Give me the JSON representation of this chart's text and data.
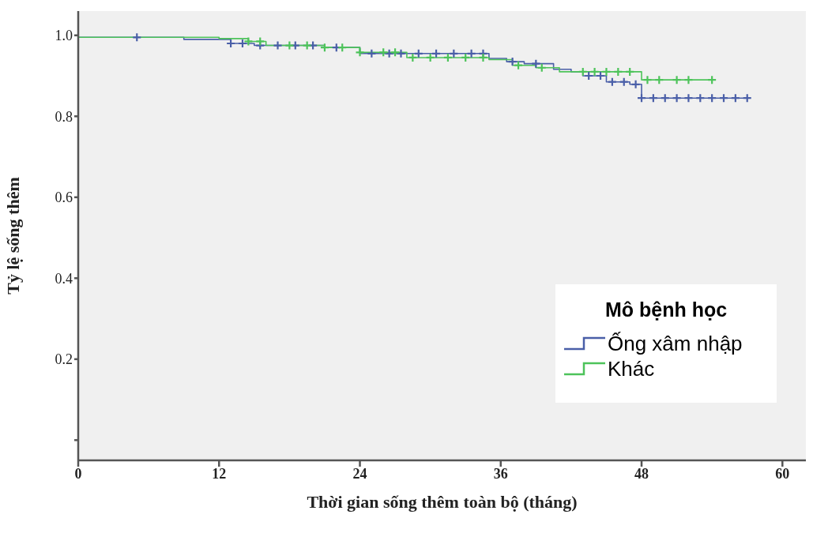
{
  "chart_data": {
    "type": "step",
    "xlabel": "Thời gian sống thêm toàn bộ (tháng)",
    "ylabel": "Tỷ lệ sống thêm",
    "legend_title": "Mô bệnh học",
    "legend": "bottom right",
    "grid": false,
    "xlim": [
      0,
      62
    ],
    "xticks": [
      0,
      12,
      24,
      36,
      48,
      60
    ],
    "ylim": [
      -0.05,
      1.06
    ],
    "yticks": [
      {
        "value": 0,
        "label": null
      },
      0.2,
      0.4,
      0.6,
      {
        "value": 0.8,
        "label": "0.8"
      },
      {
        "value": 1,
        "label": "1.0"
      }
    ],
    "series": [
      {
        "name": "Ống xâm nhập",
        "type": "step",
        "color": "#4a5fa8",
        "marker": "none",
        "x": [
          0,
          9,
          13,
          15,
          21,
          24,
          35,
          36.5,
          38,
          40.5,
          42,
          43,
          45,
          47,
          48,
          57
        ],
        "values": [
          0.995,
          0.99,
          0.98,
          0.975,
          0.97,
          0.955,
          0.943,
          0.935,
          0.93,
          0.916,
          0.91,
          0.9,
          0.885,
          0.879,
          0.845,
          0.845
        ]
      },
      {
        "name": "Khác",
        "type": "step",
        "color": "#4dc35a",
        "marker": "none",
        "x": [
          0,
          12,
          14.5,
          16,
          21,
          24,
          28,
          35,
          37,
          39,
          41,
          48,
          54
        ],
        "values": [
          0.995,
          0.992,
          0.985,
          0.975,
          0.97,
          0.958,
          0.945,
          0.94,
          0.926,
          0.92,
          0.91,
          0.89,
          0.89
        ]
      },
      {
        "type": "scatter",
        "color": "#4a5fa8",
        "marker": "cross",
        "x": [
          5,
          13,
          14,
          15.5,
          17,
          18.5,
          20,
          22,
          25,
          26.5,
          27.5,
          29,
          30.5,
          32,
          33.5,
          34.5,
          37,
          39,
          43.5,
          44.5,
          45.5,
          46.5,
          47.5,
          48,
          49,
          50,
          51,
          52,
          53,
          54,
          55,
          56,
          57
        ],
        "values": [
          0.995,
          0.98,
          0.98,
          0.975,
          0.975,
          0.975,
          0.975,
          0.97,
          0.955,
          0.955,
          0.955,
          0.955,
          0.955,
          0.955,
          0.955,
          0.955,
          0.935,
          0.93,
          0.9,
          0.9,
          0.885,
          0.885,
          0.879,
          0.845,
          0.845,
          0.845,
          0.845,
          0.845,
          0.845,
          0.845,
          0.845,
          0.845,
          0.845
        ]
      },
      {
        "type": "scatter",
        "color": "#4dc35a",
        "marker": "cross",
        "x": [
          14.5,
          15.5,
          18,
          19.5,
          21,
          22.5,
          24,
          26,
          27,
          28.5,
          30,
          31.5,
          33,
          34.5,
          37.5,
          39.5,
          43,
          44,
          45,
          46,
          47,
          48.5,
          49.5,
          51,
          52,
          54
        ],
        "values": [
          0.985,
          0.985,
          0.975,
          0.975,
          0.97,
          0.97,
          0.958,
          0.958,
          0.958,
          0.945,
          0.945,
          0.945,
          0.945,
          0.945,
          0.926,
          0.92,
          0.91,
          0.91,
          0.91,
          0.91,
          0.91,
          0.89,
          0.89,
          0.89,
          0.89,
          0.89
        ]
      }
    ]
  }
}
